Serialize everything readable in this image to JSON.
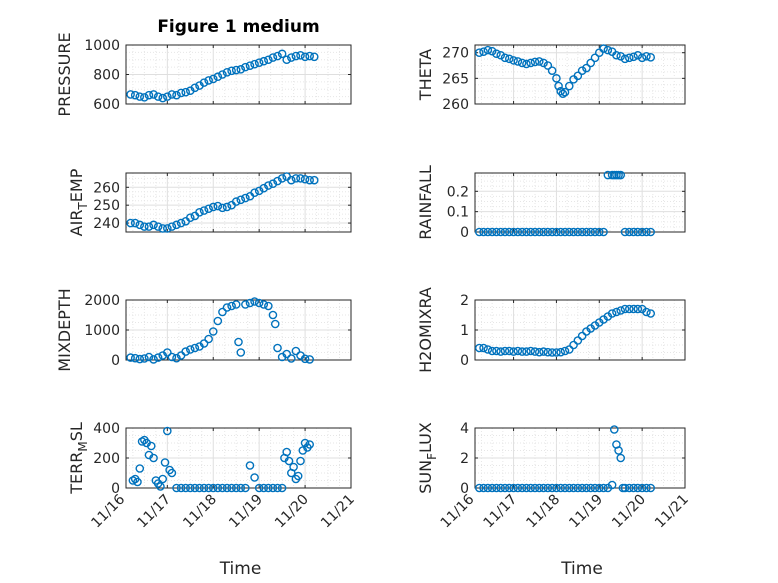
{
  "figure": {
    "title": "Figure 1 medium",
    "x_tick_labels": [
      "11/16",
      "11/17",
      "11/18",
      "11/19",
      "11/20",
      "11/21"
    ],
    "x_label": "Time",
    "marker_color": "#0072BD"
  },
  "chart_data": [
    {
      "type": "scatter",
      "id": "pressure",
      "ylabel": "PRESSURE",
      "ylabel_parts": [
        "PRESSURE"
      ],
      "title": "Figure 1 medium",
      "xlim": [
        16.1,
        21.0
      ],
      "ylim": [
        600,
        1000
      ],
      "yticks": [
        600,
        800,
        1000
      ],
      "ytick_labels": [
        "600",
        "800",
        "1000"
      ],
      "x": [
        16.2,
        16.3,
        16.4,
        16.5,
        16.6,
        16.7,
        16.8,
        16.9,
        17.0,
        17.1,
        17.2,
        17.3,
        17.4,
        17.5,
        17.6,
        17.7,
        17.8,
        17.9,
        18.0,
        18.1,
        18.2,
        18.3,
        18.4,
        18.5,
        18.6,
        18.7,
        18.8,
        18.9,
        19.0,
        19.1,
        19.2,
        19.3,
        19.4,
        19.5,
        19.6,
        19.7,
        19.8,
        19.9,
        20.0,
        20.1,
        20.2
      ],
      "y": [
        665,
        660,
        650,
        645,
        660,
        665,
        650,
        640,
        650,
        665,
        660,
        675,
        680,
        690,
        710,
        725,
        745,
        760,
        770,
        785,
        800,
        815,
        825,
        830,
        835,
        850,
        860,
        870,
        880,
        890,
        900,
        915,
        925,
        940,
        900,
        915,
        925,
        930,
        920,
        925,
        920
      ]
    },
    {
      "type": "scatter",
      "id": "theta",
      "ylabel": "THETA",
      "ylabel_parts": [
        "THETA"
      ],
      "xlim": [
        16.1,
        21.0
      ],
      "ylim": [
        260,
        271.5
      ],
      "yticks": [
        260,
        265,
        270
      ],
      "ytick_labels": [
        "260",
        "265",
        "270"
      ],
      "x": [
        16.2,
        16.3,
        16.4,
        16.5,
        16.6,
        16.7,
        16.8,
        16.9,
        17.0,
        17.1,
        17.2,
        17.3,
        17.4,
        17.5,
        17.6,
        17.7,
        17.8,
        17.9,
        18.0,
        18.05,
        18.1,
        18.15,
        18.2,
        18.3,
        18.4,
        18.5,
        18.6,
        18.7,
        18.8,
        18.9,
        19.0,
        19.1,
        19.2,
        19.3,
        19.4,
        19.5,
        19.6,
        19.7,
        19.8,
        19.9,
        20.0,
        20.1,
        20.2
      ],
      "y": [
        270,
        270.2,
        270.5,
        270.3,
        269.8,
        269.5,
        269.0,
        268.8,
        268.5,
        268.3,
        268.0,
        267.8,
        268.0,
        268.2,
        268.3,
        268.0,
        267.5,
        266.5,
        265.0,
        263.5,
        262.5,
        262.0,
        262.3,
        263.5,
        264.8,
        265.5,
        266.5,
        267.0,
        268.0,
        269.0,
        270.0,
        270.8,
        270.5,
        270.2,
        269.5,
        269.3,
        268.8,
        269.0,
        269.2,
        269.5,
        269.0,
        269.3,
        269.1
      ]
    },
    {
      "type": "scatter",
      "id": "air_temp",
      "ylabel": "AIR_TEMP",
      "ylabel_parts": [
        "AIR",
        "T",
        "EMP"
      ],
      "xlim": [
        16.1,
        21.0
      ],
      "ylim": [
        235,
        268
      ],
      "yticks": [
        240,
        250,
        260
      ],
      "ytick_labels": [
        "240",
        "250",
        "260"
      ],
      "x": [
        16.2,
        16.3,
        16.4,
        16.5,
        16.6,
        16.7,
        16.8,
        16.9,
        17.0,
        17.1,
        17.2,
        17.3,
        17.4,
        17.5,
        17.6,
        17.7,
        17.8,
        17.9,
        18.0,
        18.1,
        18.2,
        18.3,
        18.4,
        18.5,
        18.6,
        18.7,
        18.8,
        18.9,
        19.0,
        19.1,
        19.2,
        19.3,
        19.4,
        19.5,
        19.6,
        19.7,
        19.8,
        19.9,
        20.0,
        20.1,
        20.2
      ],
      "y": [
        240,
        240,
        239,
        238,
        238,
        239,
        238,
        237,
        237,
        238,
        239,
        240,
        241,
        243,
        244,
        246,
        247,
        248,
        249,
        249.5,
        248.5,
        249,
        250,
        252,
        253,
        254,
        255,
        257,
        258,
        259.5,
        261,
        262,
        263.5,
        265,
        266,
        264,
        265,
        265,
        264.5,
        264,
        264
      ]
    },
    {
      "type": "scatter",
      "id": "rainfall",
      "ylabel": "RAINFALL",
      "ylabel_parts": [
        "RAINFALL"
      ],
      "xlim": [
        16.1,
        21.0
      ],
      "ylim": [
        0,
        0.29
      ],
      "yticks": [
        0,
        0.1,
        0.2
      ],
      "ytick_labels": [
        "0",
        "0.1",
        "0.2"
      ],
      "x": [
        16.2,
        16.3,
        16.4,
        16.5,
        16.6,
        16.7,
        16.8,
        16.9,
        17.0,
        17.1,
        17.2,
        17.3,
        17.4,
        17.5,
        17.6,
        17.7,
        17.8,
        17.9,
        18.0,
        18.1,
        18.2,
        18.3,
        18.4,
        18.5,
        18.6,
        18.7,
        18.8,
        18.9,
        19.0,
        19.1,
        19.2,
        19.3,
        19.35,
        19.4,
        19.45,
        19.5,
        19.6,
        19.7,
        19.8,
        19.9,
        20.0,
        20.1,
        20.2
      ],
      "y": [
        0,
        0,
        0,
        0,
        0,
        0,
        0,
        0,
        0,
        0,
        0,
        0,
        0,
        0,
        0,
        0,
        0,
        0,
        0,
        0,
        0,
        0,
        0,
        0,
        0,
        0,
        0,
        0,
        0,
        0,
        0.28,
        0.28,
        0.28,
        0.28,
        0.28,
        0.28,
        0,
        0,
        0,
        0,
        0,
        0,
        0
      ]
    },
    {
      "type": "scatter",
      "id": "mixdepth",
      "ylabel": "MIXDEPTH",
      "ylabel_parts": [
        "MIXDEPTH"
      ],
      "xlim": [
        16.1,
        21.0
      ],
      "ylim": [
        0,
        2000
      ],
      "yticks": [
        0,
        1000,
        2000
      ],
      "ytick_labels": [
        "0",
        "1000",
        "2000"
      ],
      "x": [
        16.2,
        16.3,
        16.4,
        16.5,
        16.6,
        16.7,
        16.8,
        16.9,
        17.0,
        17.1,
        17.2,
        17.3,
        17.4,
        17.5,
        17.6,
        17.7,
        17.8,
        17.9,
        18.0,
        18.1,
        18.2,
        18.3,
        18.4,
        18.5,
        18.55,
        18.6,
        18.7,
        18.8,
        18.9,
        19.0,
        19.1,
        19.2,
        19.3,
        19.35,
        19.4,
        19.5,
        19.6,
        19.7,
        19.8,
        19.9,
        20.0,
        20.1
      ],
      "y": [
        80,
        60,
        30,
        50,
        100,
        20,
        80,
        150,
        250,
        100,
        60,
        150,
        280,
        350,
        400,
        450,
        550,
        700,
        950,
        1300,
        1600,
        1750,
        1800,
        1850,
        600,
        250,
        1850,
        1900,
        1950,
        1900,
        1850,
        1800,
        1500,
        1200,
        400,
        100,
        200,
        50,
        300,
        150,
        40,
        20
      ]
    },
    {
      "type": "scatter",
      "id": "h2omixra",
      "ylabel": "H2OMIXRA",
      "ylabel_parts": [
        "H2OMIXRA"
      ],
      "xlim": [
        16.1,
        21.0
      ],
      "ylim": [
        0,
        2
      ],
      "yticks": [
        0,
        1,
        2
      ],
      "ytick_labels": [
        "0",
        "1",
        "2"
      ],
      "x": [
        16.2,
        16.3,
        16.4,
        16.5,
        16.6,
        16.7,
        16.8,
        16.9,
        17.0,
        17.1,
        17.2,
        17.3,
        17.4,
        17.5,
        17.6,
        17.7,
        17.8,
        17.9,
        18.0,
        18.1,
        18.2,
        18.3,
        18.4,
        18.5,
        18.6,
        18.7,
        18.8,
        18.9,
        19.0,
        19.1,
        19.2,
        19.3,
        19.4,
        19.5,
        19.6,
        19.7,
        19.8,
        19.9,
        20.0,
        20.1,
        20.2
      ],
      "y": [
        0.4,
        0.4,
        0.35,
        0.3,
        0.3,
        0.28,
        0.3,
        0.3,
        0.28,
        0.3,
        0.28,
        0.28,
        0.3,
        0.28,
        0.26,
        0.28,
        0.26,
        0.25,
        0.25,
        0.26,
        0.3,
        0.35,
        0.5,
        0.65,
        0.8,
        0.95,
        1.05,
        1.15,
        1.25,
        1.35,
        1.45,
        1.55,
        1.6,
        1.65,
        1.7,
        1.7,
        1.7,
        1.7,
        1.7,
        1.6,
        1.55
      ]
    },
    {
      "type": "scatter",
      "id": "terr_msl",
      "ylabel": "TERR_MSL",
      "ylabel_parts": [
        "TERR",
        "M",
        "SL"
      ],
      "xlim": [
        16.1,
        21.0
      ],
      "ylim": [
        0,
        400
      ],
      "yticks": [
        0,
        200,
        400
      ],
      "ytick_labels": [
        "0",
        "200",
        "400"
      ],
      "x": [
        16.25,
        16.3,
        16.35,
        16.4,
        16.45,
        16.5,
        16.55,
        16.6,
        16.65,
        16.7,
        16.75,
        16.8,
        16.85,
        16.9,
        16.95,
        17.0,
        17.05,
        17.1,
        17.2,
        17.3,
        17.4,
        17.5,
        17.6,
        17.7,
        17.8,
        17.9,
        18.0,
        18.1,
        18.2,
        18.3,
        18.4,
        18.5,
        18.6,
        18.7,
        18.8,
        18.9,
        19.0,
        19.1,
        19.2,
        19.3,
        19.4,
        19.5,
        19.55,
        19.6,
        19.65,
        19.7,
        19.75,
        19.8,
        19.85,
        19.9,
        19.95,
        20.0,
        20.05,
        20.1
      ],
      "y": [
        50,
        60,
        40,
        130,
        310,
        320,
        300,
        220,
        280,
        200,
        50,
        30,
        10,
        60,
        170,
        380,
        120,
        100,
        0,
        0,
        0,
        0,
        0,
        0,
        0,
        0,
        0,
        0,
        0,
        0,
        0,
        0,
        0,
        0,
        150,
        70,
        0,
        0,
        0,
        0,
        0,
        0,
        200,
        240,
        180,
        100,
        140,
        60,
        80,
        180,
        250,
        300,
        270,
        290
      ]
    },
    {
      "type": "scatter",
      "id": "sun_flux",
      "ylabel": "SUN_FLUX",
      "ylabel_parts": [
        "SUN",
        "F",
        "LUX"
      ],
      "xlim": [
        16.1,
        21.0
      ],
      "ylim": [
        0,
        4
      ],
      "yticks": [
        0,
        2,
        4
      ],
      "ytick_labels": [
        "0",
        "2",
        "4"
      ],
      "x": [
        16.2,
        16.3,
        16.4,
        16.5,
        16.6,
        16.7,
        16.8,
        16.9,
        17.0,
        17.1,
        17.2,
        17.3,
        17.4,
        17.5,
        17.6,
        17.7,
        17.8,
        17.9,
        18.0,
        18.1,
        18.2,
        18.3,
        18.4,
        18.5,
        18.6,
        18.7,
        18.8,
        18.9,
        19.0,
        19.1,
        19.2,
        19.3,
        19.35,
        19.4,
        19.45,
        19.5,
        19.55,
        19.6,
        19.7,
        19.8,
        19.9,
        20.0,
        20.1,
        20.2
      ],
      "y": [
        0,
        0,
        0,
        0,
        0,
        0,
        0,
        0,
        0,
        0,
        0,
        0,
        0,
        0,
        0,
        0,
        0,
        0,
        0,
        0,
        0,
        0,
        0,
        0,
        0,
        0,
        0,
        0,
        0,
        0,
        0,
        0.2,
        3.9,
        2.9,
        2.5,
        2.0,
        0,
        0,
        0,
        0,
        0,
        0,
        0,
        0
      ]
    }
  ]
}
